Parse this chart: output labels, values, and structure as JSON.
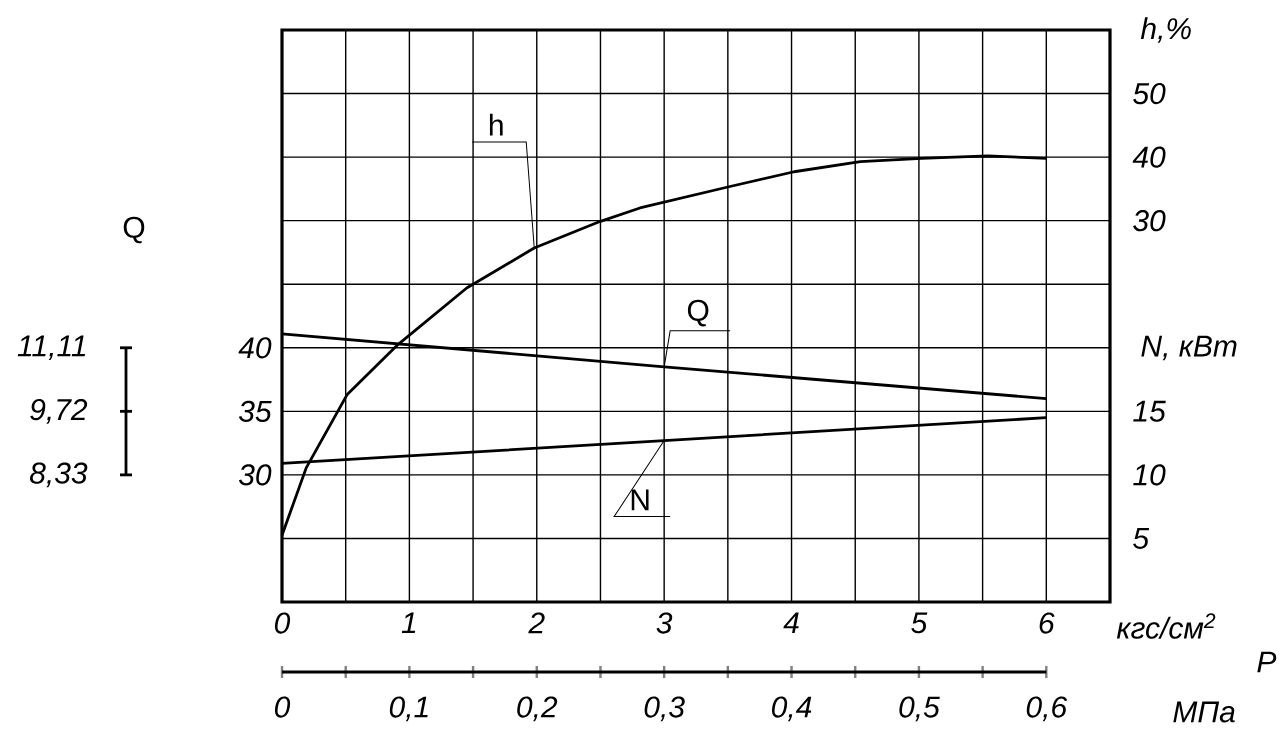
{
  "chart_data": {
    "type": "line",
    "ylabel": "Q",
    "y2label": "N, кВт",
    "y3label": "h,%",
    "xlabel": "кгс/см$^{2}$",
    "x2label": "МПа",
    "annotations": [
      "P",
      "11,11",
      "9,72",
      "8,33"
    ],
    "grid": true,
    "xlim": [
      0,
      6.5
    ],
    "xticks": [
      0,
      {
        "value": 0.5,
        "label": null
      },
      1,
      {
        "value": 1.5,
        "label": null
      },
      2,
      {
        "value": 2.5,
        "label": null
      },
      3,
      {
        "value": 3.5,
        "label": null
      },
      4,
      {
        "value": 4.5,
        "label": null
      },
      5,
      {
        "value": 5.5,
        "label": null
      },
      6
    ],
    "x2lim": [
      0,
      0.65
    ],
    "x2ticks": [
      0,
      {
        "value": 0.05,
        "label": null
      },
      {
        "value": 0.1,
        "label": "0,1"
      },
      {
        "value": 0.15,
        "label": null
      },
      {
        "value": 0.2,
        "label": "0,2"
      },
      {
        "value": 0.25,
        "label": null
      },
      {
        "value": 0.3,
        "label": "0,3"
      },
      {
        "value": 0.35,
        "label": null
      },
      {
        "value": 0.4,
        "label": "0,4"
      },
      {
        "value": 0.45,
        "label": null
      },
      {
        "value": 0.5,
        "label": "0,5"
      },
      {
        "value": 0.55,
        "label": null
      },
      {
        "value": 0.6,
        "label": "0,6"
      }
    ],
    "ylim": [
      20,
      65
    ],
    "yticks": [
      {
        "value": 25,
        "label": null
      },
      30,
      35,
      40,
      {
        "value": 45,
        "label": null
      },
      {
        "value": 50,
        "label": null
      },
      {
        "value": 55,
        "label": null
      },
      {
        "value": 60,
        "label": null
      }
    ],
    "y2lim": [
      0,
      45
    ],
    "y2ticks": [
      5,
      10,
      15
    ],
    "y3lim": [
      -30,
      60
    ],
    "y3ticks": [
      30,
      40,
      50
    ],
    "series": [
      {
        "name": "h",
        "color": "#000000",
        "axis": "y3",
        "x": [
          0,
          0.19,
          0.51,
          0.91,
          1.45,
          1.98,
          2.5,
          2.81,
          3.5,
          4.02,
          4.54,
          5.02,
          5.54,
          6.0
        ],
        "values": [
          -19.5,
          -8.9,
          2.6,
          10.5,
          19.4,
          25.7,
          29.9,
          32.0,
          35.3,
          37.7,
          39.3,
          39.8,
          40.2,
          39.8
        ]
      },
      {
        "name": "Q",
        "color": "#000000",
        "axis": "y",
        "x": [
          0,
          3,
          6
        ],
        "values": [
          41.1,
          38.5,
          36.0
        ]
      },
      {
        "name": "N",
        "color": "#000000",
        "axis": "y2",
        "x": [
          0,
          3,
          6
        ],
        "values": [
          10.9,
          12.7,
          14.5
        ]
      }
    ]
  }
}
